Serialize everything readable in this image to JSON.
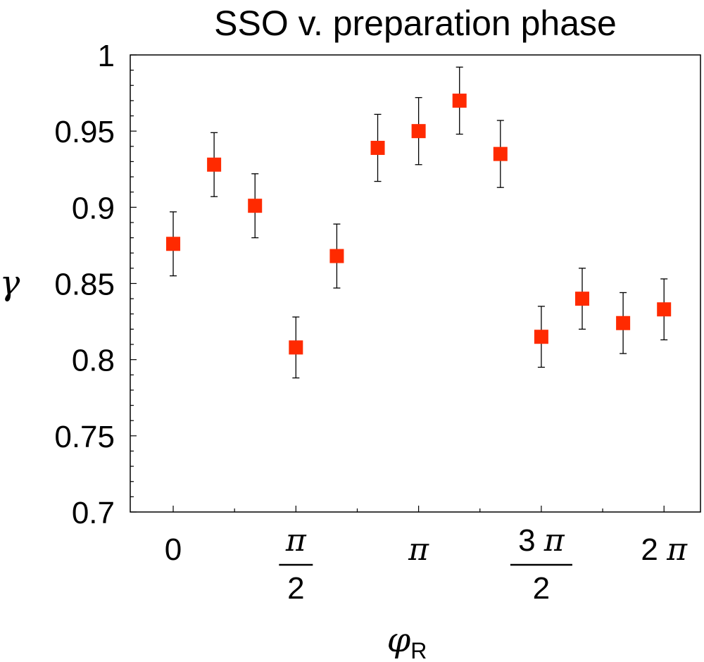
{
  "chart_data": {
    "type": "scatter",
    "title": "SSO v. preparation phase",
    "xlabel": "φ",
    "xlabel_subscript": "R",
    "ylabel": "γ",
    "xlim": [
      -0.55,
      6.75
    ],
    "ylim": [
      0.7,
      1.0
    ],
    "x_ticks": [
      {
        "value": 0,
        "text": "0"
      },
      {
        "value": 1.5708,
        "numerator": "π",
        "denominator": "2"
      },
      {
        "value": 3.1416,
        "text": "π"
      },
      {
        "value": 4.7124,
        "numerator": "3 π",
        "denominator": "2"
      },
      {
        "value": 6.2832,
        "text": "2 π"
      }
    ],
    "y_ticks": [
      {
        "value": 0.7,
        "text": "0.7"
      },
      {
        "value": 0.75,
        "text": "0.75"
      },
      {
        "value": 0.8,
        "text": "0.8"
      },
      {
        "value": 0.85,
        "text": "0.85"
      },
      {
        "value": 0.9,
        "text": "0.9"
      },
      {
        "value": 0.95,
        "text": "0.95"
      },
      {
        "value": 1.0,
        "text": "1"
      }
    ],
    "marker_color": "#ff2a00",
    "errorbar_color": "#000000",
    "series": [
      {
        "name": "SSO",
        "x": [
          0.0,
          0.5236,
          1.0472,
          1.5708,
          2.0944,
          2.618,
          3.1416,
          3.6652,
          4.1888,
          4.7124,
          5.236,
          5.7596,
          6.2832
        ],
        "y": [
          0.876,
          0.928,
          0.901,
          0.808,
          0.868,
          0.939,
          0.95,
          0.97,
          0.935,
          0.815,
          0.84,
          0.824,
          0.833
        ],
        "err": [
          0.021,
          0.021,
          0.021,
          0.02,
          0.021,
          0.022,
          0.022,
          0.022,
          0.022,
          0.02,
          0.02,
          0.02,
          0.02
        ]
      }
    ]
  }
}
